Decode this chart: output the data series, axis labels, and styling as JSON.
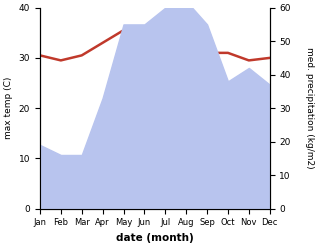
{
  "months": [
    "Jan",
    "Feb",
    "Mar",
    "Apr",
    "May",
    "Jun",
    "Jul",
    "Aug",
    "Sep",
    "Oct",
    "Nov",
    "Dec"
  ],
  "temperature": [
    30.5,
    29.5,
    30.5,
    33.0,
    35.5,
    34.0,
    31.5,
    31.0,
    31.0,
    31.0,
    29.5,
    30.0
  ],
  "precipitation": [
    19,
    16,
    16,
    33,
    55,
    55,
    60,
    62,
    55,
    38,
    42,
    37
  ],
  "temp_color": "#c0392b",
  "precip_fill_color": "#b8c4ee",
  "ylabel_left": "max temp (C)",
  "ylabel_right": "med. precipitation (kg/m2)",
  "xlabel": "date (month)",
  "ylim_left": [
    0,
    40
  ],
  "ylim_right": [
    0,
    60
  ],
  "bg_color": "#ffffff",
  "line_width": 1.8
}
